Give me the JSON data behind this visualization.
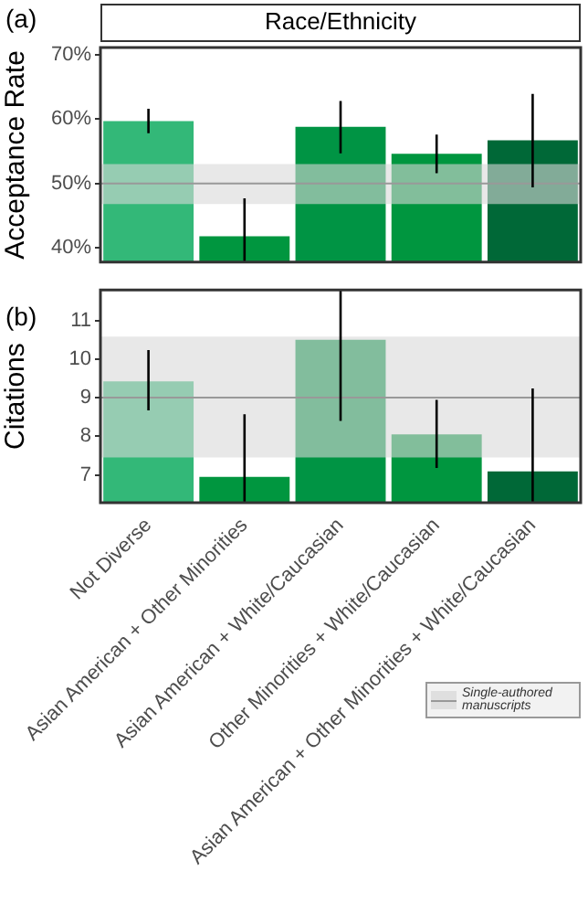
{
  "chart_data": [
    {
      "type": "bar",
      "title": "Race/Ethnicity",
      "ylabel": "Acceptance Rate",
      "annotations": [
        "(a)"
      ],
      "categories": [
        null,
        null,
        null,
        null,
        null
      ],
      "values": [
        59.7,
        41.8,
        58.8,
        54.6,
        56.7
      ],
      "colors": [
        "#33b878",
        "#00963f",
        "#009444",
        "#00963f",
        "#006837"
      ],
      "errors": [
        [
          57.8,
          61.6
        ],
        [
          37.8,
          47.7
        ],
        [
          54.7,
          62.8
        ],
        [
          51.6,
          57.6
        ],
        [
          49.4,
          63.9
        ]
      ],
      "ylim": [
        37.8,
        71.1
      ],
      "yticks": [
        {
          "value": 40,
          "label": "40%"
        },
        {
          "value": 50,
          "label": "50%"
        },
        {
          "value": 60,
          "label": "60%"
        },
        {
          "value": 70,
          "label": "70%"
        }
      ],
      "tick_labels": "y",
      "grid": false,
      "bands": [
        {
          "axis": "y",
          "from": 46.8,
          "to": 53.0,
          "color": "#d9d9d9"
        }
      ],
      "ref_lines": [
        {
          "axis": "y",
          "value": 50,
          "color": "#999999"
        }
      ]
    },
    {
      "type": "bar",
      "ylabel": "Citations",
      "annotations": [
        "(b)"
      ],
      "categories": [
        "Not Diverse",
        "Asian American + Other Minorities",
        "Asian American + White/Caucasian",
        "Other Minorities + White/Caucasian",
        "Asian American + Other Minorities + White/Caucasian"
      ],
      "values": [
        9.42,
        6.95,
        10.5,
        8.05,
        7.09
      ],
      "colors": [
        "#33b878",
        "#00963f",
        "#009444",
        "#00963f",
        "#006837"
      ],
      "errors": [
        [
          8.67,
          10.23
        ],
        [
          6.28,
          8.57
        ],
        [
          8.4,
          11.79
        ],
        [
          7.18,
          8.94
        ],
        [
          6.28,
          9.24
        ]
      ],
      "ylim": [
        6.28,
        11.79
      ],
      "yticks": [
        7,
        8,
        9,
        10,
        11
      ],
      "grid": false,
      "legend": "bottom right",
      "bands": [
        {
          "axis": "y",
          "from": 7.45,
          "to": 10.58,
          "color": "#d9d9d9",
          "label": "Single-authored manuscripts"
        }
      ],
      "ref_lines": [
        {
          "axis": "y",
          "value": 9,
          "color": "#999999"
        }
      ]
    }
  ]
}
